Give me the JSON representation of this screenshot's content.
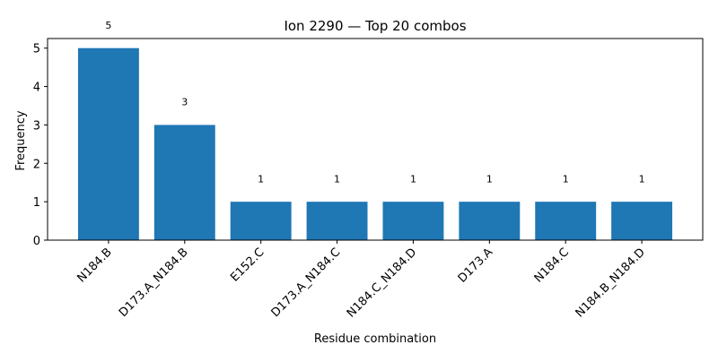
{
  "chart_data": {
    "type": "bar",
    "title": "Ion 2290 — Top 20 combos",
    "xlabel": "Residue combination",
    "ylabel": "Frequency",
    "categories": [
      "N184.B",
      "D173.A_N184.B",
      "E152.C",
      "D173.A_N184.C",
      "N184.C_N184.D",
      "D173.A",
      "N184.C",
      "N184.B_N184.D"
    ],
    "values": [
      5,
      3,
      1,
      1,
      1,
      1,
      1,
      1
    ],
    "data_labels": [
      "5",
      "3",
      "1",
      "1",
      "1",
      "1",
      "1",
      "1"
    ],
    "ylim": [
      0,
      5.25
    ],
    "yticks": [
      0,
      1,
      2,
      3,
      4,
      5
    ],
    "ytick_labels": [
      "0",
      "1",
      "2",
      "3",
      "4",
      "5"
    ],
    "bar_color": "#1f77b4",
    "grid": false,
    "legend": "none"
  }
}
